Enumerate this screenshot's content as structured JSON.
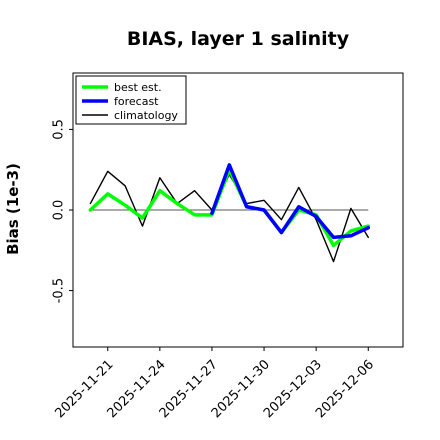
{
  "chart_data": {
    "type": "line",
    "title": "BIAS, layer 1 salinity",
    "xlabel": "",
    "ylabel": "Bias (1e-3)",
    "ylim": [
      -0.85,
      0.85
    ],
    "xlim": [
      "2025-11-19",
      "2025-12-08"
    ],
    "yticks": [
      -0.5,
      0.0,
      0.5
    ],
    "ytick_labels": [
      "-0.5",
      "0.0",
      "0.5"
    ],
    "xticks": [
      "2025-11-21",
      "2025-11-24",
      "2025-11-27",
      "2025-11-30",
      "2025-12-03",
      "2025-12-06"
    ],
    "xtick_colors": [
      "#000000",
      "#000000",
      "#228B22",
      "#000000",
      "#000000",
      "#000000"
    ],
    "x": [
      "2025-11-20",
      "2025-11-21",
      "2025-11-22",
      "2025-11-23",
      "2025-11-24",
      "2025-11-25",
      "2025-11-26",
      "2025-11-27",
      "2025-11-28",
      "2025-11-29",
      "2025-11-30",
      "2025-12-01",
      "2025-12-02",
      "2025-12-03",
      "2025-12-04",
      "2025-12-05",
      "2025-12-06"
    ],
    "series": [
      {
        "name": "climatology",
        "color": "#000000",
        "values": [
          0.04,
          0.24,
          0.15,
          -0.1,
          0.2,
          0.04,
          0.12,
          0.0,
          0.22,
          0.04,
          0.06,
          -0.06,
          0.14,
          -0.06,
          -0.32,
          0.01,
          -0.17
        ]
      },
      {
        "name": "best est.",
        "color": "#00ff00",
        "values": [
          0.0,
          0.1,
          0.03,
          -0.05,
          0.12,
          0.04,
          -0.03,
          -0.03,
          0.25,
          0.02,
          0.0,
          -0.14,
          0.0,
          -0.03,
          -0.22,
          -0.13,
          -0.1
        ]
      },
      {
        "name": "forecast",
        "color": "#0000ff",
        "values": [
          null,
          null,
          null,
          null,
          null,
          null,
          null,
          -0.02,
          0.28,
          0.02,
          0.0,
          -0.14,
          0.02,
          -0.04,
          -0.17,
          -0.16,
          -0.11
        ]
      }
    ],
    "legend": {
      "position": "top-left",
      "entries": [
        "best est.",
        "forecast",
        "climatology"
      ]
    },
    "zero_line": true,
    "grid": false
  }
}
